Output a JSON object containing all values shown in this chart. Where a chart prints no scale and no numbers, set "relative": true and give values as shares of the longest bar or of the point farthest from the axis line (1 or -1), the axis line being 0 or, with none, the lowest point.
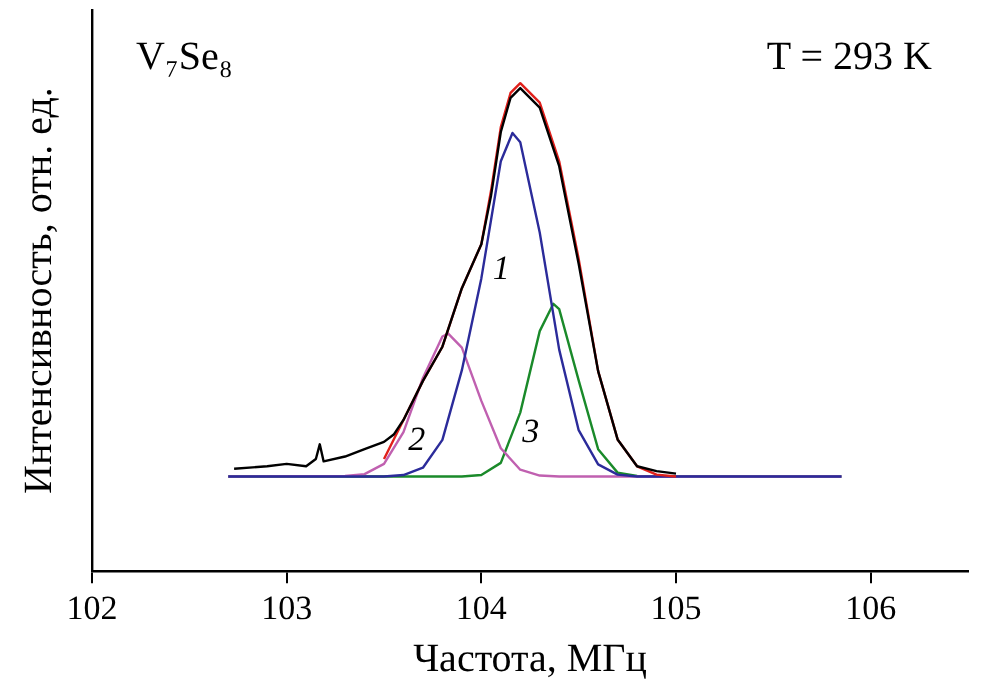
{
  "chart_data": {
    "type": "line",
    "relative": true,
    "xlabel": "Частота, МГц",
    "ylabel": "Интенсивность, отн. ед.",
    "annotations": [
      "V₇Se₈",
      "T = 293 K"
    ],
    "xlim": [
      102,
      106.5
    ],
    "xticks": [
      102,
      103,
      104,
      105,
      106
    ],
    "grid": false,
    "legend": false,
    "marker": "none",
    "line_style": "solid",
    "series": [
      {
        "color": "#000000",
        "x": [
          102.73,
          102.9,
          103.0,
          103.1,
          103.15,
          103.17,
          103.19,
          103.3,
          103.4,
          103.5,
          103.55,
          103.6,
          103.7,
          103.8,
          103.9,
          104.0,
          104.05,
          104.1,
          104.15,
          104.2,
          104.3,
          104.4,
          104.5,
          104.6,
          104.7,
          104.8,
          104.9,
          105.0
        ],
        "values": [
          0.21,
          0.215,
          0.22,
          0.215,
          0.23,
          0.26,
          0.225,
          0.235,
          0.25,
          0.265,
          0.28,
          0.31,
          0.39,
          0.46,
          0.58,
          0.67,
          0.77,
          0.9,
          0.97,
          0.99,
          0.95,
          0.83,
          0.63,
          0.41,
          0.27,
          0.215,
          0.205,
          0.2
        ]
      },
      {
        "color": "#e0201b",
        "x": [
          103.5,
          103.6,
          103.7,
          103.8,
          103.9,
          104.0,
          104.05,
          104.1,
          104.15,
          104.2,
          104.3,
          104.4,
          104.5,
          104.6,
          104.7,
          104.8,
          104.9,
          105.0
        ],
        "values": [
          0.23,
          0.31,
          0.39,
          0.46,
          0.58,
          0.67,
          0.78,
          0.91,
          0.98,
          1.0,
          0.96,
          0.84,
          0.64,
          0.41,
          0.27,
          0.215,
          0.198,
          0.194
        ]
      },
      {
        "name": "1",
        "color": "#2b2b9a",
        "x": [
          102.7,
          103.5,
          103.6,
          103.7,
          103.8,
          103.9,
          104.0,
          104.1,
          104.16,
          104.2,
          104.3,
          104.4,
          104.5,
          104.6,
          104.7,
          104.8,
          105.85
        ],
        "values": [
          0.194,
          0.194,
          0.197,
          0.212,
          0.269,
          0.412,
          0.6,
          0.84,
          0.898,
          0.879,
          0.694,
          0.454,
          0.289,
          0.219,
          0.198,
          0.194,
          0.194
        ]
      },
      {
        "name": "2",
        "color": "#c060b0",
        "x": [
          102.7,
          103.3,
          103.4,
          103.5,
          103.6,
          103.7,
          103.8,
          103.83,
          103.9,
          104.0,
          104.1,
          104.2,
          104.3,
          104.4,
          105.85
        ],
        "values": [
          0.194,
          0.195,
          0.199,
          0.22,
          0.285,
          0.396,
          0.481,
          0.487,
          0.458,
          0.349,
          0.252,
          0.208,
          0.196,
          0.194,
          0.194
        ]
      },
      {
        "name": "3",
        "color": "#1a8a2a",
        "x": [
          102.7,
          103.9,
          104.0,
          104.1,
          104.2,
          104.3,
          104.37,
          104.4,
          104.5,
          104.6,
          104.7,
          104.8,
          105.85
        ],
        "values": [
          0.194,
          0.194,
          0.197,
          0.222,
          0.325,
          0.492,
          0.548,
          0.537,
          0.391,
          0.25,
          0.202,
          0.195,
          0.194
        ]
      }
    ]
  }
}
